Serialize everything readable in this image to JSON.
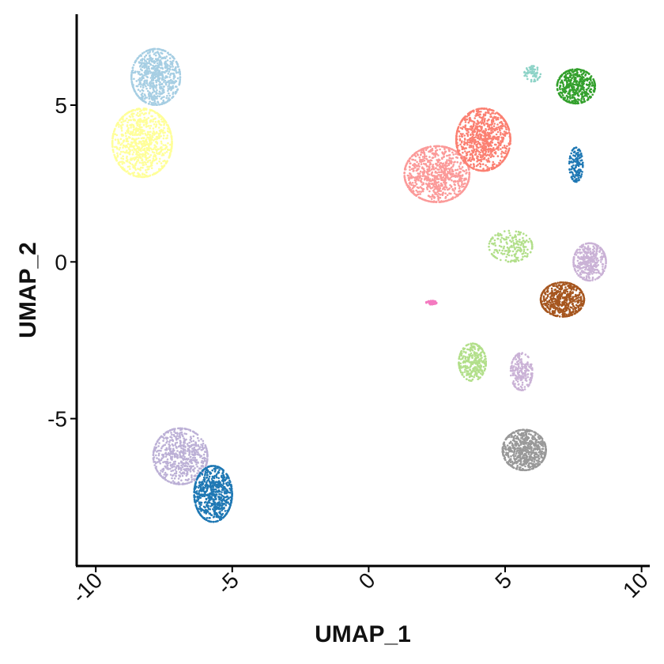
{
  "chart_data": {
    "type": "scatter",
    "title": "",
    "xlabel": "UMAP_1",
    "ylabel": "UMAP_2",
    "xlim": [
      -10.7,
      10.3
    ],
    "ylim": [
      -9.7,
      7.9
    ],
    "xticks": [
      -10,
      -5,
      0,
      5,
      10
    ],
    "xtick_labels": [
      "-10",
      "-5",
      "0",
      "5",
      "10"
    ],
    "yticks": [
      -5,
      0,
      5
    ],
    "ytick_labels": [
      "-5",
      "0",
      "5"
    ],
    "grid": false,
    "legend": "none",
    "clusters": [
      {
        "color": "#a6cee3",
        "center": [
          -7.8,
          5.9
        ],
        "spread": [
          0.9,
          0.9
        ],
        "points": 700
      },
      {
        "color": "#ffff99",
        "center": [
          -8.3,
          3.8
        ],
        "spread": [
          1.1,
          1.1
        ],
        "points": 900
      },
      {
        "color": "#bcb0d6",
        "center": [
          -6.9,
          -6.2
        ],
        "spread": [
          1.0,
          0.9
        ],
        "points": 650
      },
      {
        "color": "#1f78b4",
        "center": [
          -5.7,
          -7.4
        ],
        "spread": [
          0.7,
          0.9
        ],
        "points": 700
      },
      {
        "color": "#fb9a99",
        "center": [
          2.5,
          2.8
        ],
        "spread": [
          1.2,
          0.9
        ],
        "points": 900
      },
      {
        "color": "#fb8072",
        "center": [
          4.2,
          3.9
        ],
        "spread": [
          1.0,
          1.0
        ],
        "points": 900
      },
      {
        "color": "#8dd3c7",
        "center": [
          6.0,
          6.0
        ],
        "spread": [
          0.3,
          0.25
        ],
        "points": 60
      },
      {
        "color": "#33a02c",
        "center": [
          7.6,
          5.6
        ],
        "spread": [
          0.7,
          0.55
        ],
        "points": 450
      },
      {
        "color": "#1f78b4",
        "center": [
          7.6,
          3.1
        ],
        "spread": [
          0.25,
          0.55
        ],
        "points": 150
      },
      {
        "color": "#b2df8a",
        "center": [
          5.2,
          0.5
        ],
        "spread": [
          0.8,
          0.5
        ],
        "points": 200
      },
      {
        "color": "#cab2d6",
        "center": [
          8.1,
          0.0
        ],
        "spread": [
          0.6,
          0.6
        ],
        "points": 400
      },
      {
        "color": "#a6561f",
        "center": [
          7.1,
          -1.2
        ],
        "spread": [
          0.8,
          0.55
        ],
        "points": 600
      },
      {
        "color": "#f47ac0",
        "center": [
          2.3,
          -1.3
        ],
        "spread": [
          0.2,
          0.06
        ],
        "points": 40
      },
      {
        "color": "#b2df8a",
        "center": [
          3.8,
          -3.2
        ],
        "spread": [
          0.5,
          0.6
        ],
        "points": 300
      },
      {
        "color": "#cab2d6",
        "center": [
          5.6,
          -3.5
        ],
        "spread": [
          0.4,
          0.6
        ],
        "points": 200
      },
      {
        "color": "#999999",
        "center": [
          5.7,
          -6.0
        ],
        "spread": [
          0.8,
          0.65
        ],
        "points": 700
      }
    ]
  }
}
